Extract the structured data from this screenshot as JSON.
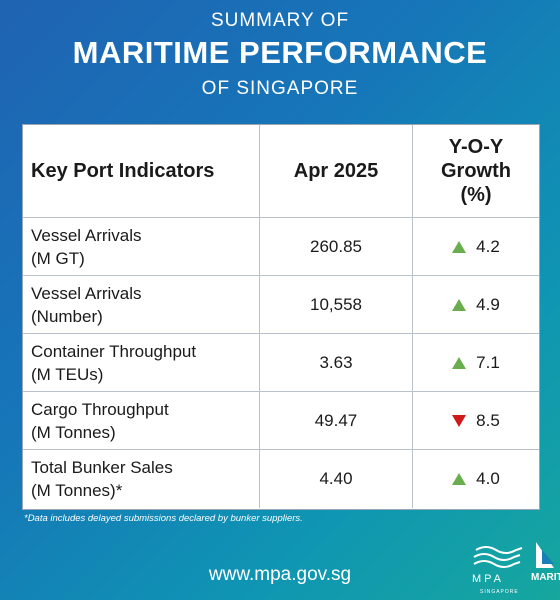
{
  "title": {
    "line1": "SUMMARY OF",
    "line2": "MARITIME PERFORMANCE",
    "line3": "OF SINGAPORE"
  },
  "table": {
    "headers": {
      "indicator": "Key Port Indicators",
      "period": "Apr 2025",
      "growth_line1": "Y-O-Y",
      "growth_line2": "Growth",
      "growth_line3": "(%)"
    },
    "rows": [
      {
        "label": "Vessel Arrivals",
        "unit": "(M GT)",
        "value": "260.85",
        "growth": "4.2",
        "direction": "up"
      },
      {
        "label": "Vessel Arrivals",
        "unit": "(Number)",
        "value": "10,558",
        "growth": "4.9",
        "direction": "up"
      },
      {
        "label": "Container Throughput",
        "unit": "(M TEUs)",
        "value": "3.63",
        "growth": "7.1",
        "direction": "up"
      },
      {
        "label": "Cargo Throughput",
        "unit": "(M Tonnes)",
        "value": "49.47",
        "growth": "8.5",
        "direction": "down"
      },
      {
        "label": "Total Bunker Sales",
        "unit": "(M Tonnes)*",
        "value": "4.40",
        "growth": "4.0",
        "direction": "up"
      }
    ]
  },
  "footnote": "*Data includes delayed submissions declared by bunker suppliers.",
  "url": "www.mpa.gov.sg",
  "logos": {
    "mpa_name": "MPA",
    "mpa_sub": "SINGAPORE",
    "maritime_text": "MARIT"
  },
  "colors": {
    "up": "#6aad4e",
    "down": "#d01a1a"
  },
  "icons": {
    "up": "triangle-up-icon",
    "down": "triangle-down-icon"
  }
}
